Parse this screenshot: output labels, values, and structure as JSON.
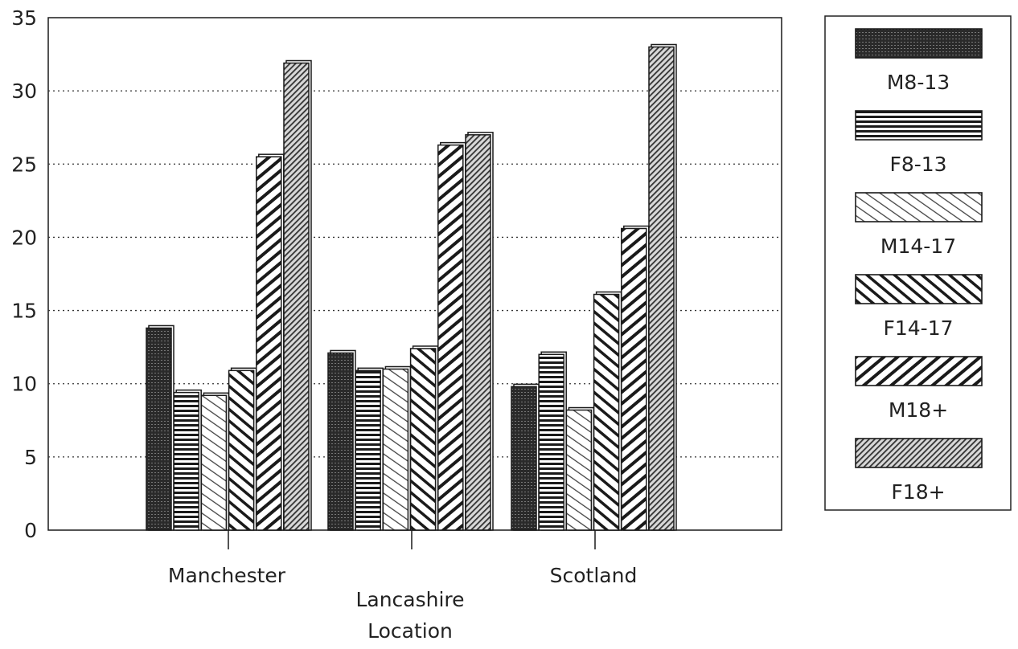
{
  "chart_data": {
    "type": "bar",
    "title": "",
    "xlabel": "Location",
    "ylabel": "",
    "ylim": [
      0,
      35
    ],
    "yticks": [
      0,
      5,
      10,
      15,
      20,
      25,
      30,
      35
    ],
    "grid": true,
    "legend_position": "right",
    "categories": [
      "Manchester",
      "Lancashire",
      "Scotland"
    ],
    "series": [
      {
        "name": "M8-13",
        "values": [
          13.8,
          12.1,
          9.8
        ],
        "pattern": "dense-cross"
      },
      {
        "name": "F8-13",
        "values": [
          9.4,
          10.9,
          12.0
        ],
        "pattern": "horizontal"
      },
      {
        "name": "M14-17",
        "values": [
          9.2,
          11.0,
          8.2
        ],
        "pattern": "light-diagonal"
      },
      {
        "name": "F14-17",
        "values": [
          10.9,
          12.4,
          16.1
        ],
        "pattern": "diagonal"
      },
      {
        "name": "M18+",
        "values": [
          25.5,
          26.3,
          20.6
        ],
        "pattern": "back-diagonal"
      },
      {
        "name": "F18+",
        "values": [
          31.9,
          27.0,
          33.0
        ],
        "pattern": "fine-back-diagonal"
      }
    ]
  },
  "colors": {
    "ink": "#1a1a1a",
    "grid": "#333333",
    "background": "#ffffff"
  }
}
